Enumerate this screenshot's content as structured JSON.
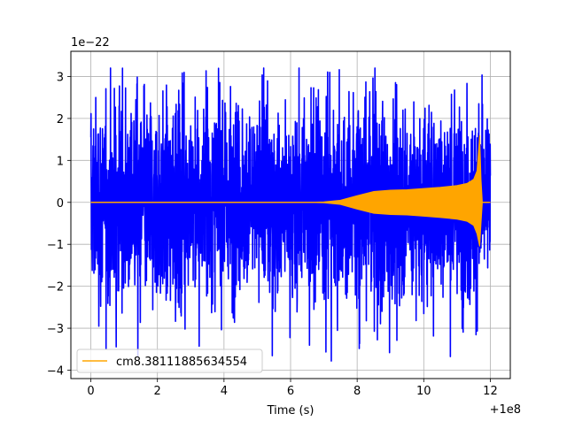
{
  "chart_data": {
    "type": "line",
    "xlabel": "Time (s)",
    "ylabel": "",
    "x_offset_label": "+1e8",
    "y_scale_label": "1e−22",
    "xlim": [
      -0.6,
      12.6
    ],
    "ylim": [
      -4.2,
      3.6
    ],
    "x_ticks": [
      0,
      2,
      4,
      6,
      8,
      10,
      12
    ],
    "y_ticks": [
      -4,
      -3,
      -2,
      -1,
      0,
      1,
      2,
      3
    ],
    "grid": true,
    "legend": {
      "placement": "lower-left",
      "entries": [
        "cm8.38111885634554"
      ]
    },
    "series": [
      {
        "name": "",
        "role": "strain noise",
        "color": "#0000ff",
        "x_range": [
          0.0,
          12.0
        ],
        "envelope_typical": [
          -2.0,
          2.0
        ],
        "envelope_extreme": [
          -3.85,
          3.2
        ]
      },
      {
        "name": "cm8.38111885634554",
        "role": "chirp template",
        "color": "#ffa500",
        "x": [
          0.0,
          6.5,
          7.0,
          7.5,
          8.0,
          8.5,
          9.0,
          9.5,
          10.0,
          10.5,
          11.0,
          11.3,
          11.5,
          11.6,
          11.68,
          11.72,
          11.76,
          12.0
        ],
        "upper_envelope": [
          0.0,
          0.0,
          0.01,
          0.05,
          0.16,
          0.26,
          0.29,
          0.3,
          0.33,
          0.36,
          0.4,
          0.45,
          0.55,
          0.75,
          1.6,
          0.55,
          0.0,
          0.0
        ],
        "lower_envelope": [
          0.0,
          0.0,
          -0.01,
          -0.05,
          -0.16,
          -0.26,
          -0.29,
          -0.3,
          -0.33,
          -0.36,
          -0.4,
          -0.45,
          -0.55,
          -0.75,
          -1.05,
          -0.5,
          0.0,
          0.0
        ]
      }
    ]
  }
}
